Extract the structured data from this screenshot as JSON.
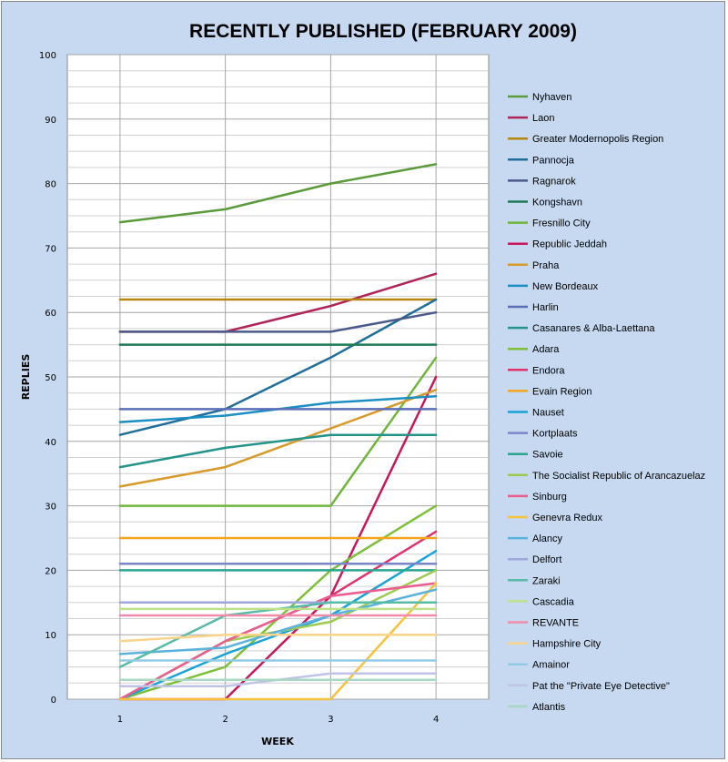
{
  "chart_data": {
    "type": "line",
    "title": "RECENTLY PUBLISHED (FEBRUARY 2009)",
    "xlabel": "WEEK",
    "ylabel": "REPLIES",
    "x": [
      1,
      2,
      3,
      4
    ],
    "x_tick_labels": [
      "1",
      "2",
      "3",
      "4"
    ],
    "ylim": [
      0,
      100
    ],
    "y_ticks": [
      0,
      10,
      20,
      30,
      40,
      50,
      60,
      70,
      80,
      90,
      100
    ],
    "grid": true,
    "legend_position": "right",
    "series": [
      {
        "name": "Nyhaven",
        "color": "#5b9b3c",
        "values": [
          74,
          76,
          80,
          83
        ]
      },
      {
        "name": "Laon",
        "color": "#b0245a",
        "values": [
          57,
          57,
          61,
          66
        ]
      },
      {
        "name": "Greater Modernopolis Region",
        "color": "#b8860b",
        "values": [
          62,
          62,
          62,
          62
        ]
      },
      {
        "name": "Pannocja",
        "color": "#1f6f9a",
        "values": [
          41,
          45,
          53,
          62
        ]
      },
      {
        "name": "Ragnarok",
        "color": "#4a5a8c",
        "values": [
          57,
          57,
          57,
          60
        ]
      },
      {
        "name": "Kongshavn",
        "color": "#1e7a55",
        "values": [
          55,
          55,
          55,
          55
        ]
      },
      {
        "name": "Fresnillo City",
        "color": "#6fb63c",
        "values": [
          30,
          30,
          30,
          53
        ]
      },
      {
        "name": "Republic Jeddah",
        "color": "#c8175d",
        "values": [
          0,
          0,
          16,
          50
        ]
      },
      {
        "name": "Praha",
        "color": "#d89a2b",
        "values": [
          33,
          36,
          42,
          48
        ]
      },
      {
        "name": "New Bordeaux",
        "color": "#1b8fc4",
        "values": [
          43,
          44,
          46,
          47
        ]
      },
      {
        "name": "Harlin",
        "color": "#5b6fb8",
        "values": [
          45,
          45,
          45,
          45
        ]
      },
      {
        "name": "Casanares & Alba-Laettana",
        "color": "#23948a",
        "values": [
          36,
          39,
          41,
          41
        ]
      },
      {
        "name": "Adara",
        "color": "#7ec03a",
        "values": [
          0,
          5,
          20,
          30
        ]
      },
      {
        "name": "Endora",
        "color": "#e0336d",
        "values": [
          0,
          9,
          16,
          26
        ]
      },
      {
        "name": "Evain Region",
        "color": "#f4a51c",
        "values": [
          25,
          25,
          25,
          25
        ]
      },
      {
        "name": "Nauset",
        "color": "#1aa3d9",
        "values": [
          0,
          7,
          13,
          23
        ]
      },
      {
        "name": "Kortplaats",
        "color": "#7a86cc",
        "values": [
          21,
          21,
          21,
          21
        ]
      },
      {
        "name": "Savoie",
        "color": "#2aa590",
        "values": [
          20,
          20,
          20,
          20
        ]
      },
      {
        "name": "The Socialist Republic of Arancazuelaz",
        "color": "#9bcc50",
        "values": [
          0,
          9,
          12,
          20
        ]
      },
      {
        "name": "Sinburg",
        "color": "#ea5d8e",
        "values": [
          0,
          9,
          16,
          18
        ]
      },
      {
        "name": "Genevra Redux",
        "color": "#f8c23c",
        "values": [
          0,
          0,
          0,
          18
        ]
      },
      {
        "name": "Alancy",
        "color": "#5bb2dc",
        "values": [
          7,
          8,
          13,
          17
        ]
      },
      {
        "name": "Delfort",
        "color": "#9ea6dc",
        "values": [
          15,
          15,
          15,
          15
        ]
      },
      {
        "name": "Zaraki",
        "color": "#56bca8",
        "values": [
          5,
          13,
          15,
          15
        ]
      },
      {
        "name": "Cascadia",
        "color": "#bde08a",
        "values": [
          14,
          14,
          14,
          14
        ]
      },
      {
        "name": "REVANTE",
        "color": "#f28aaa",
        "values": [
          13,
          13,
          13,
          13
        ]
      },
      {
        "name": "Hampshire City",
        "color": "#fad48a",
        "values": [
          9,
          10,
          10,
          10
        ]
      },
      {
        "name": "Amainor",
        "color": "#93cbe6",
        "values": [
          6,
          6,
          6,
          6
        ]
      },
      {
        "name": "Pat the \"Private Eye Detective\"",
        "color": "#bfc4e6",
        "values": [
          2,
          2,
          4,
          4
        ]
      },
      {
        "name": "Atlantis",
        "color": "#a8d8c4",
        "values": [
          3,
          3,
          3,
          3
        ]
      }
    ]
  }
}
